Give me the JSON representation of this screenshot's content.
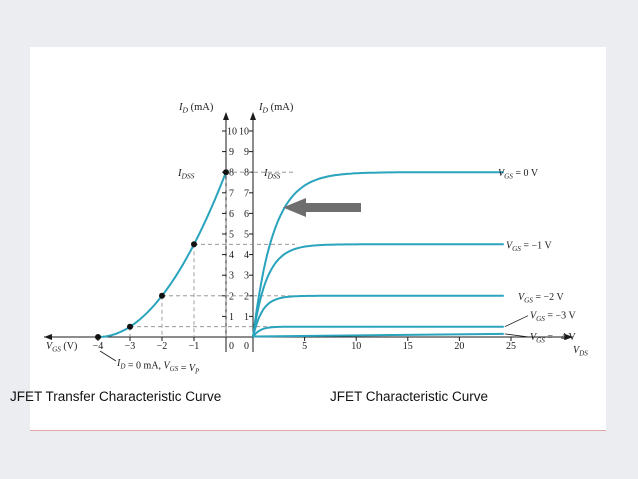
{
  "captions": {
    "left": "JFET Transfer Characteristic Curve",
    "right": "JFET Characteristic Curve"
  },
  "colors": {
    "curve": "#2aa3bd",
    "axis": "#1a1a1a",
    "guide": "#8a8a8a",
    "arrow": "#6e6e6e",
    "background": "#ecedf1"
  },
  "chart_data": [
    {
      "type": "line",
      "name": "transfer",
      "x_axis_label": "V_GS (V)",
      "y_axis_label": "I_D (mA)",
      "xlim": [
        -4,
        0
      ],
      "ylim": [
        0,
        10
      ],
      "x_ticks": [
        -4,
        -3,
        -2,
        -1,
        0
      ],
      "y_ticks": [
        1,
        2,
        3,
        4,
        5,
        6,
        7,
        8,
        9,
        10
      ],
      "x": [
        -4,
        -3.5,
        -3,
        -2.5,
        -2,
        -1.5,
        -1,
        -0.5,
        0
      ],
      "y": [
        0,
        0.125,
        0.5,
        1.125,
        2,
        3.125,
        4.5,
        6.125,
        8
      ],
      "marked_points": [
        {
          "x": -4,
          "y": 0
        },
        {
          "x": -3,
          "y": 0.5
        },
        {
          "x": -2,
          "y": 2
        },
        {
          "x": -1,
          "y": 4.5
        },
        {
          "x": 0,
          "y": 8
        }
      ],
      "annotations": {
        "idss": "I",
        "idss_sub": "DSS",
        "cutoff": "I_D = 0 mA, V_GS = V_P"
      }
    },
    {
      "type": "line",
      "name": "drain",
      "x_axis_label": "V_DS",
      "y_axis_label": "I_D (mA)",
      "xlim": [
        0,
        25
      ],
      "ylim": [
        0,
        10
      ],
      "x_ticks": [
        0,
        5,
        10,
        15,
        20,
        25
      ],
      "y_ticks": [
        1,
        2,
        3,
        4,
        5,
        6,
        7,
        8,
        9,
        10
      ],
      "series": [
        {
          "name": "V_GS = 0 V",
          "saturation": 8
        },
        {
          "name": "V_GS = −1 V",
          "saturation": 4.5
        },
        {
          "name": "V_GS = −2 V",
          "saturation": 2
        },
        {
          "name": "V_GS = −3 V",
          "saturation": 0.5
        },
        {
          "name": "V_GS = −4 V",
          "saturation": 0
        }
      ],
      "annotations": {
        "idss": "I",
        "idss_sub": "DSS"
      }
    }
  ]
}
